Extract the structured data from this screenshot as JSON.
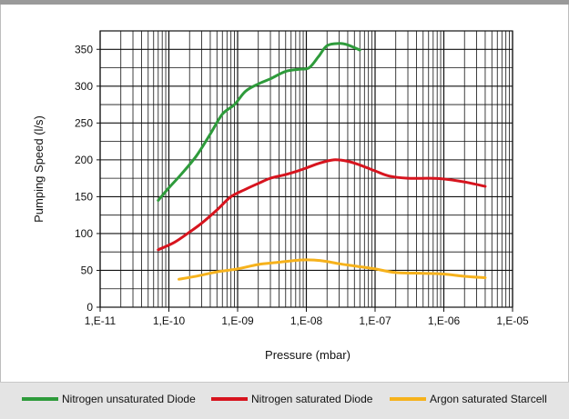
{
  "chart_data": {
    "type": "line",
    "xlabel": "Pressure (mbar)",
    "ylabel": "Pumping Speed (l/s)",
    "x_scale": "log",
    "xlim": [
      1e-11,
      1e-05
    ],
    "ylim": [
      0,
      375
    ],
    "x_ticks": [
      1e-11,
      1e-10,
      1e-09,
      1e-08,
      1e-07,
      1e-06,
      1e-05
    ],
    "x_tick_labels": [
      "1,E-11",
      "1,E-10",
      "1,E-09",
      "1,E-08",
      "1,E-07",
      "1,E-06",
      "1,E-05"
    ],
    "y_ticks": [
      0,
      50,
      100,
      150,
      200,
      250,
      300,
      350
    ],
    "y_tick_labels": [
      "0",
      "50",
      "100",
      "150",
      "200",
      "250",
      "300",
      "350"
    ],
    "grid": true,
    "legend_position": "bottom",
    "series": [
      {
        "name": "Nitrogen unsaturated Diode",
        "color": "#2e9b3b",
        "points": [
          [
            7e-11,
            145
          ],
          [
            1e-10,
            162
          ],
          [
            1.5e-10,
            180
          ],
          [
            2.5e-10,
            205
          ],
          [
            4e-10,
            235
          ],
          [
            6e-10,
            262
          ],
          [
            9e-10,
            275
          ],
          [
            1.3e-09,
            293
          ],
          [
            2e-09,
            303
          ],
          [
            3e-09,
            310
          ],
          [
            5e-09,
            320
          ],
          [
            8e-09,
            323
          ],
          [
            1.1e-08,
            325
          ],
          [
            1.5e-08,
            340
          ],
          [
            2e-08,
            355
          ],
          [
            3e-08,
            358
          ],
          [
            4e-08,
            356
          ],
          [
            6e-08,
            349
          ]
        ]
      },
      {
        "name": "Nitrogen saturated Diode",
        "color": "#d7141e",
        "points": [
          [
            7e-11,
            78
          ],
          [
            1.2e-10,
            88
          ],
          [
            2e-10,
            102
          ],
          [
            3e-10,
            114
          ],
          [
            5e-10,
            132
          ],
          [
            8e-10,
            150
          ],
          [
            1.3e-09,
            160
          ],
          [
            2e-09,
            168
          ],
          [
            3e-09,
            175
          ],
          [
            5e-09,
            180
          ],
          [
            7e-09,
            184
          ],
          [
            1e-08,
            189
          ],
          [
            1.5e-08,
            195
          ],
          [
            2.5e-08,
            200
          ],
          [
            4e-08,
            198
          ],
          [
            6e-08,
            193
          ],
          [
            1e-07,
            185
          ],
          [
            1.6e-07,
            178
          ],
          [
            3e-07,
            175
          ],
          [
            6e-07,
            175
          ],
          [
            1e-06,
            174
          ],
          [
            2e-06,
            170
          ],
          [
            4e-06,
            164
          ]
        ]
      },
      {
        "name": "Argon saturated Starcell",
        "color": "#f6b21c",
        "points": [
          [
            1.4e-10,
            38
          ],
          [
            2.5e-10,
            42
          ],
          [
            5e-10,
            48
          ],
          [
            1e-09,
            52
          ],
          [
            2e-09,
            58
          ],
          [
            4e-09,
            61
          ],
          [
            8e-09,
            64
          ],
          [
            1.3e-08,
            64
          ],
          [
            2e-08,
            62
          ],
          [
            3e-08,
            59
          ],
          [
            5e-08,
            56
          ],
          [
            1e-07,
            52
          ],
          [
            2e-07,
            47
          ],
          [
            5e-07,
            46
          ],
          [
            1e-06,
            45
          ],
          [
            2e-06,
            42
          ],
          [
            4e-06,
            40
          ]
        ]
      }
    ]
  }
}
